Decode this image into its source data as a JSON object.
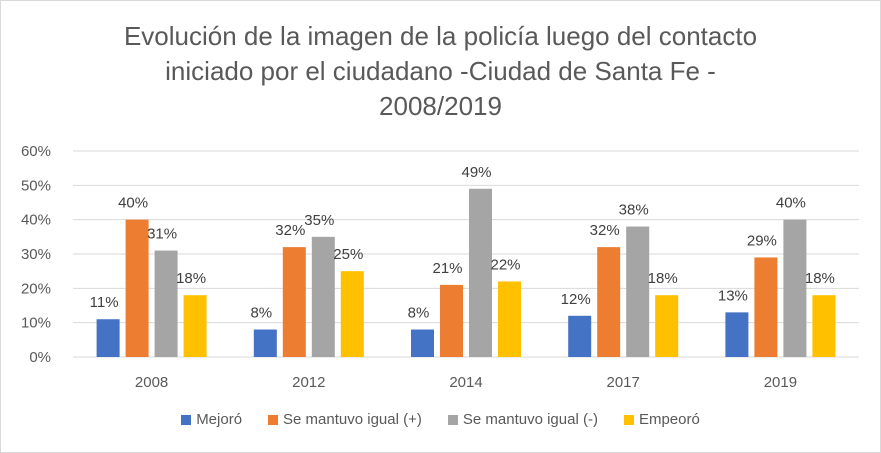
{
  "chart_data": {
    "type": "bar",
    "title_lines": [
      "Evolución de la imagen de la policía luego del contacto",
      "iniciado por el ciudadano -Ciudad de Santa Fe -",
      "2008/2019"
    ],
    "categories": [
      "2008",
      "2012",
      "2014",
      "2017",
      "2019"
    ],
    "series": [
      {
        "name": "Mejoró",
        "color": "#4472c4",
        "values": [
          11,
          8,
          8,
          12,
          13
        ]
      },
      {
        "name": "Se mantuvo igual (+)",
        "color": "#ed7d31",
        "values": [
          40,
          32,
          21,
          32,
          29
        ]
      },
      {
        "name": "Se mantuvo igual (-)",
        "color": "#a5a5a5",
        "values": [
          31,
          35,
          49,
          38,
          40
        ]
      },
      {
        "name": "Empeoró",
        "color": "#ffc000",
        "values": [
          18,
          25,
          22,
          18,
          18
        ]
      }
    ],
    "ylim": [
      0,
      60
    ],
    "yticks": [
      0,
      10,
      20,
      30,
      40,
      50,
      60
    ],
    "ytick_labels": [
      "0%",
      "10%",
      "20%",
      "30%",
      "40%",
      "50%",
      "60%"
    ],
    "value_suffix": "%",
    "grid": true,
    "legend_position": "bottom"
  }
}
